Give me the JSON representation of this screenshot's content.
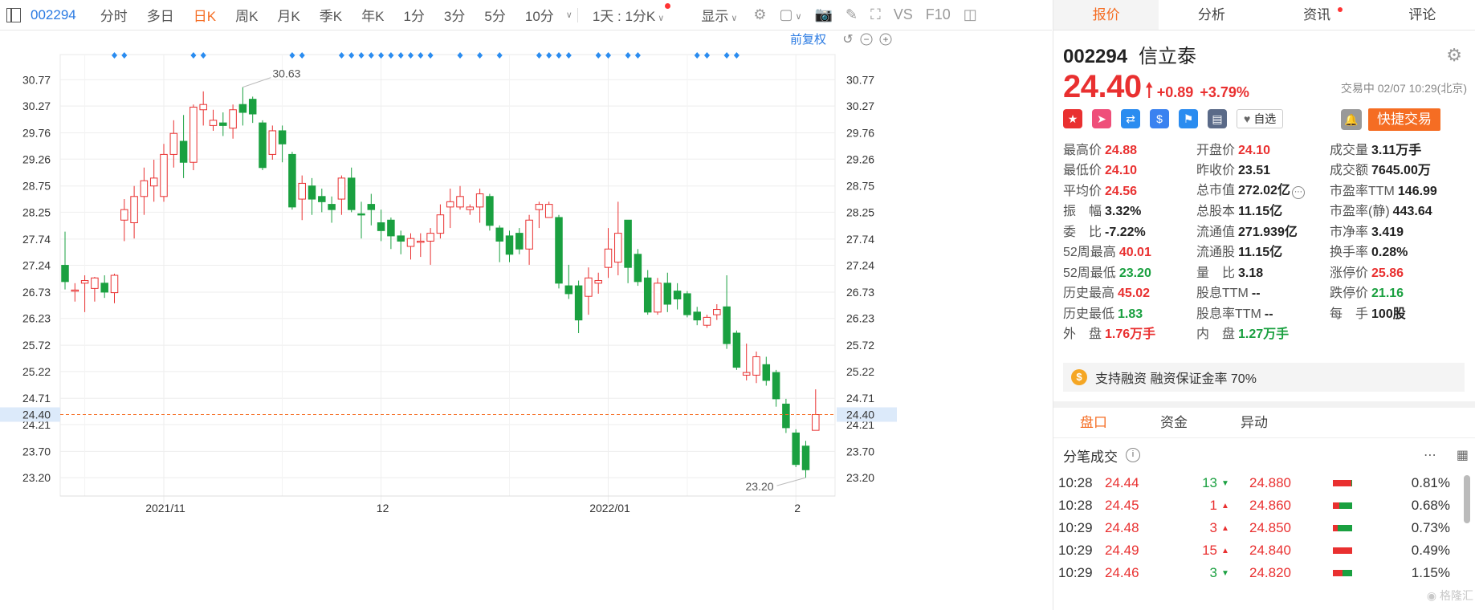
{
  "toolbar": {
    "code": "002294",
    "periods": [
      "分时",
      "多日",
      "日K",
      "周K",
      "月K",
      "季K",
      "年K",
      "1分",
      "3分",
      "5分",
      "10分"
    ],
    "active_period": "日K",
    "interval_select": "1天 : 1分K",
    "display_label": "显示",
    "vs_label": "VS",
    "f10_label": "F10"
  },
  "chart": {
    "adjust_label": "前复权",
    "current_price_label": "24.40",
    "high_marker": "30.63",
    "low_marker": "23.20",
    "colors": {
      "up": "#e93030",
      "down": "#1aa040",
      "marker": "#2a8cf0",
      "price_line": "#f56d23"
    }
  },
  "chart_data": {
    "type": "candlestick",
    "y_ticks": [
      "30.77",
      "30.27",
      "29.76",
      "29.26",
      "28.75",
      "28.25",
      "27.74",
      "27.24",
      "26.73",
      "26.23",
      "25.72",
      "25.22",
      "24.71",
      "24.21",
      "23.70",
      "23.20"
    ],
    "ylim": [
      22.85,
      31.25
    ],
    "x_labels": [
      "2021/11",
      "12",
      "2022/01",
      "2"
    ],
    "x_label_index": [
      10,
      32,
      55,
      74
    ],
    "current_price": 24.4,
    "marker_index": [
      5,
      6,
      13,
      14,
      23,
      24,
      28,
      29,
      30,
      31,
      32,
      33,
      34,
      35,
      36,
      37,
      40,
      42,
      44,
      48,
      49,
      50,
      51,
      54,
      55,
      57,
      58,
      64,
      65,
      67,
      68
    ],
    "candles": [
      [
        27.24,
        26.93,
        27.88,
        26.78
      ],
      [
        26.75,
        26.77,
        26.9,
        26.55
      ],
      [
        26.9,
        26.95,
        27.05,
        26.35
      ],
      [
        26.8,
        27.0,
        27.02,
        26.55
      ],
      [
        26.9,
        26.73,
        27.05,
        26.62
      ],
      [
        26.72,
        27.05,
        27.08,
        26.52
      ],
      [
        28.1,
        28.3,
        28.5,
        27.7
      ],
      [
        28.05,
        28.55,
        28.75,
        27.75
      ],
      [
        28.55,
        28.85,
        29.1,
        28.2
      ],
      [
        28.75,
        28.9,
        29.25,
        28.45
      ],
      [
        28.55,
        29.35,
        29.55,
        28.45
      ],
      [
        29.35,
        29.75,
        30.0,
        29.1
      ],
      [
        29.6,
        29.2,
        30.1,
        28.9
      ],
      [
        29.2,
        30.25,
        30.3,
        29.05
      ],
      [
        30.2,
        30.3,
        30.55,
        29.9
      ],
      [
        29.9,
        30.0,
        30.2,
        29.8
      ],
      [
        29.95,
        29.9,
        30.15,
        29.7
      ],
      [
        29.85,
        30.2,
        30.3,
        29.65
      ],
      [
        30.3,
        30.15,
        30.63,
        29.9
      ],
      [
        30.4,
        30.12,
        30.45,
        29.95
      ],
      [
        29.95,
        29.1,
        30.0,
        29.05
      ],
      [
        29.35,
        29.8,
        29.9,
        29.25
      ],
      [
        29.8,
        29.55,
        29.9,
        29.2
      ],
      [
        29.35,
        28.35,
        29.4,
        28.3
      ],
      [
        28.5,
        28.8,
        28.95,
        28.1
      ],
      [
        28.75,
        28.5,
        28.9,
        28.2
      ],
      [
        28.55,
        28.45,
        28.7,
        28.25
      ],
      [
        28.4,
        28.3,
        28.55,
        28.05
      ],
      [
        28.5,
        28.9,
        28.95,
        28.2
      ],
      [
        28.9,
        28.3,
        29.1,
        28.25
      ],
      [
        28.22,
        28.2,
        28.45,
        27.75
      ],
      [
        28.4,
        28.3,
        28.6,
        28.0
      ],
      [
        28.05,
        27.9,
        28.3,
        27.7
      ],
      [
        28.1,
        27.8,
        28.15,
        27.55
      ],
      [
        27.8,
        27.7,
        27.9,
        27.45
      ],
      [
        27.6,
        27.75,
        27.85,
        27.35
      ],
      [
        27.7,
        27.7,
        27.85,
        27.4
      ],
      [
        27.7,
        27.85,
        27.95,
        27.25
      ],
      [
        27.85,
        28.2,
        28.4,
        27.75
      ],
      [
        28.35,
        28.45,
        28.7,
        27.95
      ],
      [
        28.35,
        28.55,
        28.75,
        28.3
      ],
      [
        28.3,
        28.35,
        28.4,
        28.2
      ],
      [
        28.35,
        28.6,
        28.7,
        28.05
      ],
      [
        28.55,
        28.0,
        28.6,
        27.9
      ],
      [
        27.95,
        27.7,
        28.0,
        27.3
      ],
      [
        27.8,
        27.45,
        27.9,
        27.3
      ],
      [
        27.85,
        27.55,
        27.95,
        27.45
      ],
      [
        27.55,
        28.1,
        28.2,
        27.25
      ],
      [
        28.3,
        28.4,
        28.45,
        27.95
      ],
      [
        28.15,
        28.4,
        28.45,
        28.15
      ],
      [
        28.15,
        26.9,
        28.2,
        26.8
      ],
      [
        26.85,
        26.7,
        27.25,
        26.6
      ],
      [
        26.85,
        26.2,
        26.95,
        25.95
      ],
      [
        26.65,
        27.0,
        27.2,
        26.3
      ],
      [
        26.9,
        26.95,
        27.1,
        26.7
      ],
      [
        27.2,
        27.55,
        27.95,
        27.0
      ],
      [
        27.3,
        27.85,
        28.45,
        27.05
      ],
      [
        28.1,
        27.2,
        28.1,
        26.9
      ],
      [
        27.45,
        26.93,
        27.55,
        26.85
      ],
      [
        27.0,
        26.35,
        27.15,
        26.3
      ],
      [
        26.35,
        26.9,
        27.0,
        26.3
      ],
      [
        26.9,
        26.5,
        27.1,
        26.35
      ],
      [
        26.75,
        26.6,
        26.9,
        26.4
      ],
      [
        26.7,
        26.3,
        26.75,
        26.25
      ],
      [
        26.35,
        26.2,
        26.45,
        26.1
      ],
      [
        26.1,
        26.25,
        26.3,
        26.05
      ],
      [
        26.3,
        26.4,
        26.5,
        26.2
      ],
      [
        26.45,
        25.75,
        27.05,
        25.65
      ],
      [
        25.95,
        25.3,
        26.0,
        25.25
      ],
      [
        25.15,
        25.2,
        25.75,
        25.05
      ],
      [
        25.15,
        25.5,
        25.6,
        25.0
      ],
      [
        25.35,
        25.05,
        25.5,
        24.95
      ],
      [
        25.2,
        24.7,
        25.25,
        24.55
      ],
      [
        24.6,
        24.15,
        24.7,
        24.05
      ],
      [
        24.05,
        23.45,
        24.12,
        23.4
      ],
      [
        23.8,
        23.35,
        23.9,
        23.2
      ],
      [
        24.1,
        24.4,
        24.88,
        24.1
      ]
    ]
  },
  "tabs": [
    "报价",
    "分析",
    "资讯",
    "评论"
  ],
  "active_tab": "报价",
  "quote": {
    "code": "002294",
    "name": "信立泰",
    "price": "24.40",
    "change": "+0.89",
    "change_pct": "+3.79%",
    "status": "交易中 02/07 10:29(北京)",
    "watch_label": "自选",
    "trade_label": "快捷交易"
  },
  "metrics": [
    [
      {
        "label": "最高价",
        "value": "24.88",
        "tone": "up"
      },
      {
        "label": "开盘价",
        "value": "24.10",
        "tone": "up"
      },
      {
        "label": "成交量",
        "value": "3.11万手",
        "tone": ""
      }
    ],
    [
      {
        "label": "最低价",
        "value": "24.10",
        "tone": "up"
      },
      {
        "label": "昨收价",
        "value": "23.51",
        "tone": ""
      },
      {
        "label": "成交额",
        "value": "7645.00万",
        "tone": ""
      }
    ],
    [
      {
        "label": "平均价",
        "value": "24.56",
        "tone": "up"
      },
      {
        "label": "总市值",
        "value": "272.02亿",
        "tone": ""
      },
      {
        "label": "市盈率TTM",
        "value": "146.99",
        "tone": ""
      }
    ],
    [
      {
        "label": "振　幅",
        "value": "3.32%",
        "tone": ""
      },
      {
        "label": "总股本",
        "value": "11.15亿",
        "tone": ""
      },
      {
        "label": "市盈率(静)",
        "value": "443.64",
        "tone": ""
      }
    ],
    [
      {
        "label": "委　比",
        "value": "-7.22%",
        "tone": ""
      },
      {
        "label": "流通值",
        "value": "271.939亿",
        "tone": ""
      },
      {
        "label": "市净率",
        "value": "3.419",
        "tone": ""
      }
    ],
    [
      {
        "label": "52周最高",
        "value": "40.01",
        "tone": "up"
      },
      {
        "label": "流通股",
        "value": "11.15亿",
        "tone": ""
      },
      {
        "label": "换手率",
        "value": "0.28%",
        "tone": ""
      }
    ],
    [
      {
        "label": "52周最低",
        "value": "23.20",
        "tone": "down"
      },
      {
        "label": "量　比",
        "value": "3.18",
        "tone": ""
      },
      {
        "label": "涨停价",
        "value": "25.86",
        "tone": "up"
      }
    ],
    [
      {
        "label": "历史最高",
        "value": "45.02",
        "tone": "up"
      },
      {
        "label": "股息TTM",
        "value": "--",
        "tone": ""
      },
      {
        "label": "跌停价",
        "value": "21.16",
        "tone": "down"
      }
    ],
    [
      {
        "label": "历史最低",
        "value": "1.83",
        "tone": "down"
      },
      {
        "label": "股息率TTM",
        "value": "--",
        "tone": ""
      },
      {
        "label": "每　手",
        "value": "100股",
        "tone": ""
      }
    ],
    [
      {
        "label": "外　盘",
        "value": "1.76万手",
        "tone": "up"
      },
      {
        "label": "内　盘",
        "value": "1.27万手",
        "tone": "down"
      }
    ]
  ],
  "margin_text": "支持融资 融资保证金率 70%",
  "subtabs": [
    "盘口",
    "资金",
    "异动"
  ],
  "active_subtab": "盘口",
  "ticks_title": "分笔成交",
  "ticks": [
    {
      "time": "10:28",
      "price": "24.44",
      "vol": "13",
      "dir": "down",
      "oprice": "24.880",
      "red": 0.95,
      "green": 0.05,
      "pct": "0.81%"
    },
    {
      "time": "10:28",
      "price": "24.45",
      "vol": "1",
      "dir": "up",
      "oprice": "24.860",
      "red": 0.35,
      "green": 0.65,
      "pct": "0.68%"
    },
    {
      "time": "10:29",
      "price": "24.48",
      "vol": "3",
      "dir": "up",
      "oprice": "24.850",
      "red": 0.25,
      "green": 0.75,
      "pct": "0.73%"
    },
    {
      "time": "10:29",
      "price": "24.49",
      "vol": "15",
      "dir": "up",
      "oprice": "24.840",
      "red": 1.0,
      "green": 0.0,
      "pct": "0.49%"
    },
    {
      "time": "10:29",
      "price": "24.46",
      "vol": "3",
      "dir": "down",
      "oprice": "24.820",
      "red": 0.5,
      "green": 0.5,
      "pct": "1.15%"
    }
  ],
  "watermark": "格隆汇"
}
